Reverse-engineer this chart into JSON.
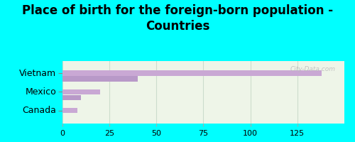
{
  "title": "Place of birth for the foreign-born population -\nCountries",
  "categories": [
    "Canada",
    "Mexico",
    "Vietnam"
  ],
  "bar1_values": [
    8,
    20,
    138
  ],
  "bar2_values": [
    0,
    10,
    40
  ],
  "bar1_color": "#c9a8d4",
  "bar2_color": "#b899c8",
  "background_color": "#00ffff",
  "chart_bg": "#eef5e8",
  "xlim": [
    0,
    150
  ],
  "xticks": [
    0,
    25,
    50,
    75,
    100,
    125
  ],
  "grid_color": "#ccddcc",
  "title_fontsize": 12,
  "label_fontsize": 9,
  "tick_fontsize": 8,
  "watermark": "City-Data.com"
}
